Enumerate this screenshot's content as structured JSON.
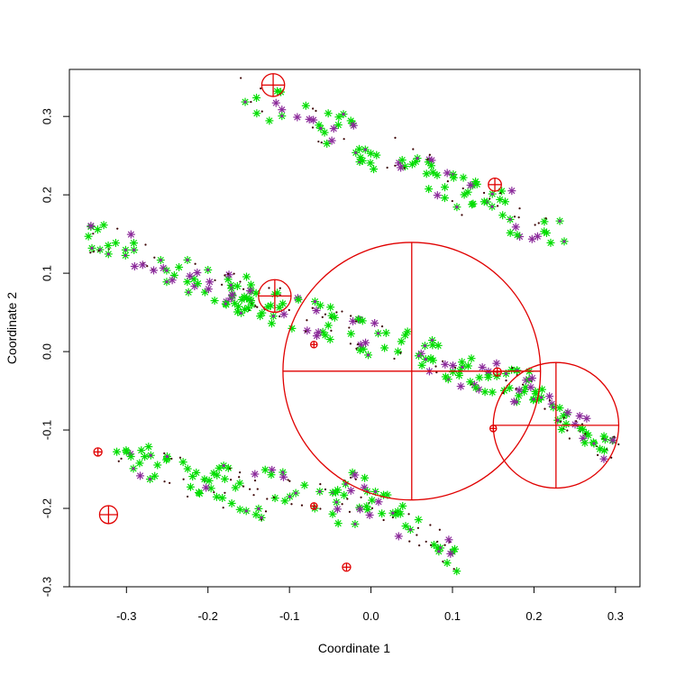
{
  "chart_data": {
    "type": "scatter",
    "title": "",
    "xlabel": "Coordinate 1",
    "ylabel": "Coordinate 2",
    "xlim": [
      -0.37,
      0.33
    ],
    "ylim": [
      -0.3,
      0.36
    ],
    "grid": false,
    "legend": "none",
    "x_ticks": [
      -0.3,
      -0.2,
      -0.1,
      0.0,
      0.1,
      0.2,
      0.3
    ],
    "x_tick_labels": [
      "-0.3",
      "-0.2",
      "-0.1",
      "0.0",
      "0.1",
      "0.2",
      "0.3"
    ],
    "y_ticks": [
      -0.3,
      -0.2,
      -0.1,
      0.0,
      0.1,
      0.2,
      0.3
    ],
    "y_tick_labels": [
      "-0.3",
      "-0.2",
      "-0.1",
      "0.0",
      "0.1",
      "0.2",
      "0.3"
    ],
    "colors": {
      "green_marker": "#00dd00",
      "purple_marker": "#8b2a9a",
      "dot_marker": "#3a0000",
      "circle": "#e00000",
      "axis": "#000000"
    },
    "clusters": [
      {
        "kind": "band",
        "x": [
          -0.15,
          0.23
        ],
        "y": [
          0.33,
          0.15
        ],
        "n": 120,
        "jitter": 0.03
      },
      {
        "kind": "band",
        "x": [
          -0.35,
          -0.14
        ],
        "y": [
          0.15,
          0.06
        ],
        "n": 70,
        "jitter": 0.025
      },
      {
        "kind": "band",
        "x": [
          -0.18,
          0.2
        ],
        "y": [
          0.08,
          -0.05
        ],
        "n": 150,
        "jitter": 0.028
      },
      {
        "kind": "band",
        "x": [
          -0.31,
          -0.12
        ],
        "y": [
          -0.13,
          -0.2
        ],
        "n": 60,
        "jitter": 0.025
      },
      {
        "kind": "band",
        "x": [
          -0.18,
          0.0
        ],
        "y": [
          -0.15,
          -0.21
        ],
        "n": 50,
        "jitter": 0.025
      },
      {
        "kind": "band",
        "x": [
          -0.04,
          0.11
        ],
        "y": [
          -0.16,
          -0.27
        ],
        "n": 55,
        "jitter": 0.022
      },
      {
        "kind": "band",
        "x": [
          0.18,
          0.3
        ],
        "y": [
          -0.04,
          -0.13
        ],
        "n": 60,
        "jitter": 0.022
      }
    ],
    "circles": [
      {
        "cx": 0.05,
        "cy": -0.025,
        "r": 0.158
      },
      {
        "cx": 0.227,
        "cy": -0.094,
        "r": 0.077
      },
      {
        "cx": -0.12,
        "cy": 0.34,
        "r": 0.014
      },
      {
        "cx": -0.118,
        "cy": 0.071,
        "r": 0.02
      },
      {
        "cx": -0.322,
        "cy": -0.208,
        "r": 0.011
      },
      {
        "cx": 0.152,
        "cy": 0.213,
        "r": 0.008
      },
      {
        "cx": -0.335,
        "cy": -0.128,
        "r": 0.005
      },
      {
        "cx": -0.03,
        "cy": -0.275,
        "r": 0.005
      },
      {
        "cx": 0.155,
        "cy": -0.026,
        "r": 0.005
      },
      {
        "cx": -0.07,
        "cy": -0.197,
        "r": 0.004
      },
      {
        "cx": -0.07,
        "cy": 0.009,
        "r": 0.004
      },
      {
        "cx": 0.15,
        "cy": -0.098,
        "r": 0.004
      }
    ]
  }
}
